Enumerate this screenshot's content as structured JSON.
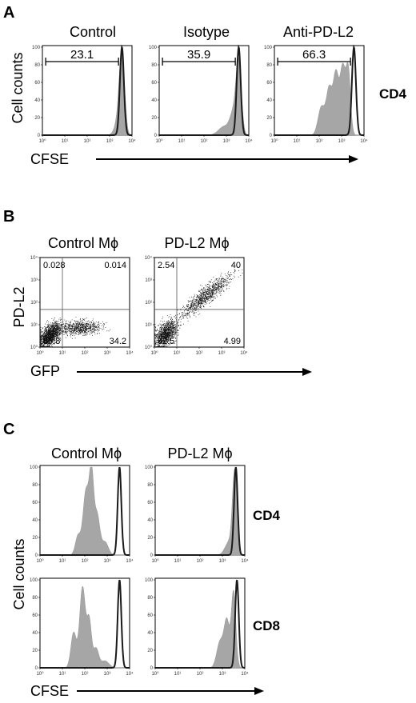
{
  "panels": {
    "A": {
      "letter": "A",
      "ylabel": "Cell counts",
      "xlabel": "CFSE",
      "row_label": "CD4",
      "plots": [
        {
          "title": "Control",
          "gate_value": "23.1"
        },
        {
          "title": "Isotype",
          "gate_value": "35.9"
        },
        {
          "title": "Anti-PD-L2",
          "gate_value": "66.3"
        }
      ]
    },
    "B": {
      "letter": "B",
      "ylabel": "PD-L2",
      "xlabel": "GFP",
      "plots": [
        {
          "title": "Control Mϕ",
          "quadrants": {
            "ul": "0.028",
            "ur": "0.014",
            "ll": "65.8",
            "lr": "34.2"
          }
        },
        {
          "title": "PD-L2 Mϕ",
          "quadrants": {
            "ul": "2.54",
            "ur": "40",
            "ll": "52.5",
            "lr": "4.99"
          }
        }
      ]
    },
    "C": {
      "letter": "C",
      "ylabel": "Cell counts",
      "xlabel": "CFSE",
      "col_titles": [
        "Control Mϕ",
        "PD-L2 Mϕ"
      ],
      "row_labels": [
        "CD4",
        "CD8"
      ]
    }
  },
  "chart_data": [
    {
      "type": "area",
      "title": "Control",
      "xlabel": "CFSE",
      "ylabel": "Cell counts",
      "x_scale": "log",
      "xlim": [
        1,
        10000
      ],
      "ylim": [
        0,
        100
      ],
      "x_tick_labels": [
        "10^0",
        "10^1",
        "10^2",
        "10^3",
        "10^4"
      ],
      "y_tick_labels": [
        "0",
        "20",
        "40",
        "60",
        "80",
        "100"
      ],
      "gate": {
        "from": 1.4,
        "to": 2500,
        "value": "23.1"
      },
      "series": [
        {
          "kind": "filled",
          "peaks": [
            [
              3.35,
              0.15,
              12
            ],
            [
              3.55,
              0.12,
              92
            ]
          ]
        },
        {
          "kind": "outline",
          "peaks": [
            [
              3.55,
              0.09,
              100
            ]
          ]
        }
      ]
    },
    {
      "type": "area",
      "title": "Isotype",
      "x_scale": "log",
      "xlim": [
        1,
        10000
      ],
      "ylim": [
        0,
        100
      ],
      "gate": {
        "from": 1.4,
        "to": 2500,
        "value": "35.9"
      },
      "series": [
        {
          "kind": "filled",
          "peaks": [
            [
              2.9,
              0.25,
              10
            ],
            [
              3.3,
              0.15,
              22
            ],
            [
              3.55,
              0.12,
              82
            ]
          ]
        },
        {
          "kind": "outline",
          "peaks": [
            [
              3.55,
              0.09,
              100
            ]
          ]
        }
      ]
    },
    {
      "type": "area",
      "title": "Anti-PD-L2",
      "x_scale": "log",
      "xlim": [
        1,
        10000
      ],
      "ylim": [
        0,
        100
      ],
      "gate": {
        "from": 1.4,
        "to": 2500,
        "value": "66.3"
      },
      "series": [
        {
          "kind": "filled",
          "peaks": [
            [
              2.1,
              0.15,
              32
            ],
            [
              2.45,
              0.13,
              52
            ],
            [
              2.75,
              0.12,
              68
            ],
            [
              3.05,
              0.12,
              76
            ],
            [
              3.3,
              0.1,
              72
            ]
          ]
        },
        {
          "kind": "outline",
          "peaks": [
            [
              3.55,
              0.09,
              100
            ]
          ]
        }
      ]
    },
    {
      "type": "scatter",
      "title": "Control Mϕ",
      "xlabel": "GFP",
      "ylabel": "PD-L2",
      "x_scale": "log",
      "y_scale": "log",
      "xlim": [
        1,
        10000
      ],
      "ylim": [
        1,
        10000
      ],
      "quadrant_split": {
        "x": 10,
        "y": 48
      },
      "quadrants": {
        "ul": 0.028,
        "ur": 0.014,
        "ll": 65.8,
        "lr": 34.2
      },
      "clusters": [
        {
          "center": [
            0.45,
            0.55
          ],
          "spread": [
            0.25,
            0.22
          ],
          "tilt": 0.6,
          "share": 0.66
        },
        {
          "center": [
            1.8,
            0.85
          ],
          "spread": [
            0.45,
            0.15
          ],
          "tilt": 0.05,
          "share": 0.34
        }
      ]
    },
    {
      "type": "scatter",
      "title": "PD-L2 Mϕ",
      "x_scale": "log",
      "y_scale": "log",
      "xlim": [
        1,
        10000
      ],
      "ylim": [
        1,
        10000
      ],
      "quadrant_split": {
        "x": 10,
        "y": 48
      },
      "quadrants": {
        "ul": 2.54,
        "ur": 40,
        "ll": 52.5,
        "lr": 4.99
      },
      "clusters": [
        {
          "center": [
            0.5,
            0.6
          ],
          "spread": [
            0.25,
            0.25
          ],
          "tilt": 0.6,
          "share": 0.52
        },
        {
          "center": [
            2.3,
            2.3
          ],
          "spread": [
            0.55,
            0.2
          ],
          "tilt": 0.75,
          "share": 0.44
        }
      ]
    },
    {
      "type": "area",
      "title": "Control Mϕ",
      "row": "CD4",
      "x_scale": "log",
      "xlim": [
        1,
        10000
      ],
      "ylim": [
        0,
        100
      ],
      "series": [
        {
          "kind": "filled",
          "peaks": [
            [
              1.7,
              0.12,
              22
            ],
            [
              2.05,
              0.13,
              72
            ],
            [
              2.3,
              0.1,
              88
            ],
            [
              2.55,
              0.12,
              45
            ],
            [
              2.9,
              0.15,
              15
            ]
          ]
        },
        {
          "kind": "outline",
          "peaks": [
            [
              3.55,
              0.08,
              100
            ]
          ]
        }
      ]
    },
    {
      "type": "area",
      "title": "PD-L2 Mϕ",
      "row": "CD4",
      "x_scale": "log",
      "xlim": [
        1,
        10000
      ],
      "ylim": [
        0,
        100
      ],
      "series": [
        {
          "kind": "filled",
          "peaks": [
            [
              3.3,
              0.18,
              15
            ],
            [
              3.55,
              0.1,
              92
            ]
          ]
        },
        {
          "kind": "outline",
          "peaks": [
            [
              3.6,
              0.08,
              100
            ]
          ]
        }
      ]
    },
    {
      "type": "area",
      "title": "Control Mϕ",
      "row": "CD8",
      "x_scale": "log",
      "xlim": [
        1,
        10000
      ],
      "ylim": [
        0,
        100
      ],
      "series": [
        {
          "kind": "filled",
          "peaks": [
            [
              1.5,
              0.12,
              40
            ],
            [
              1.9,
              0.13,
              92
            ],
            [
              2.2,
              0.1,
              52
            ],
            [
              2.5,
              0.12,
              22
            ],
            [
              2.9,
              0.18,
              8
            ]
          ]
        },
        {
          "kind": "outline",
          "peaks": [
            [
              3.55,
              0.08,
              100
            ]
          ]
        }
      ]
    },
    {
      "type": "area",
      "title": "PD-L2 Mϕ",
      "row": "CD8",
      "x_scale": "log",
      "xlim": [
        1,
        10000
      ],
      "ylim": [
        0,
        100
      ],
      "series": [
        {
          "kind": "filled",
          "peaks": [
            [
              2.9,
              0.15,
              30
            ],
            [
              3.2,
              0.12,
              52
            ],
            [
              3.5,
              0.1,
              86
            ]
          ]
        },
        {
          "kind": "outline",
          "peaks": [
            [
              3.65,
              0.08,
              100
            ]
          ]
        }
      ]
    }
  ]
}
